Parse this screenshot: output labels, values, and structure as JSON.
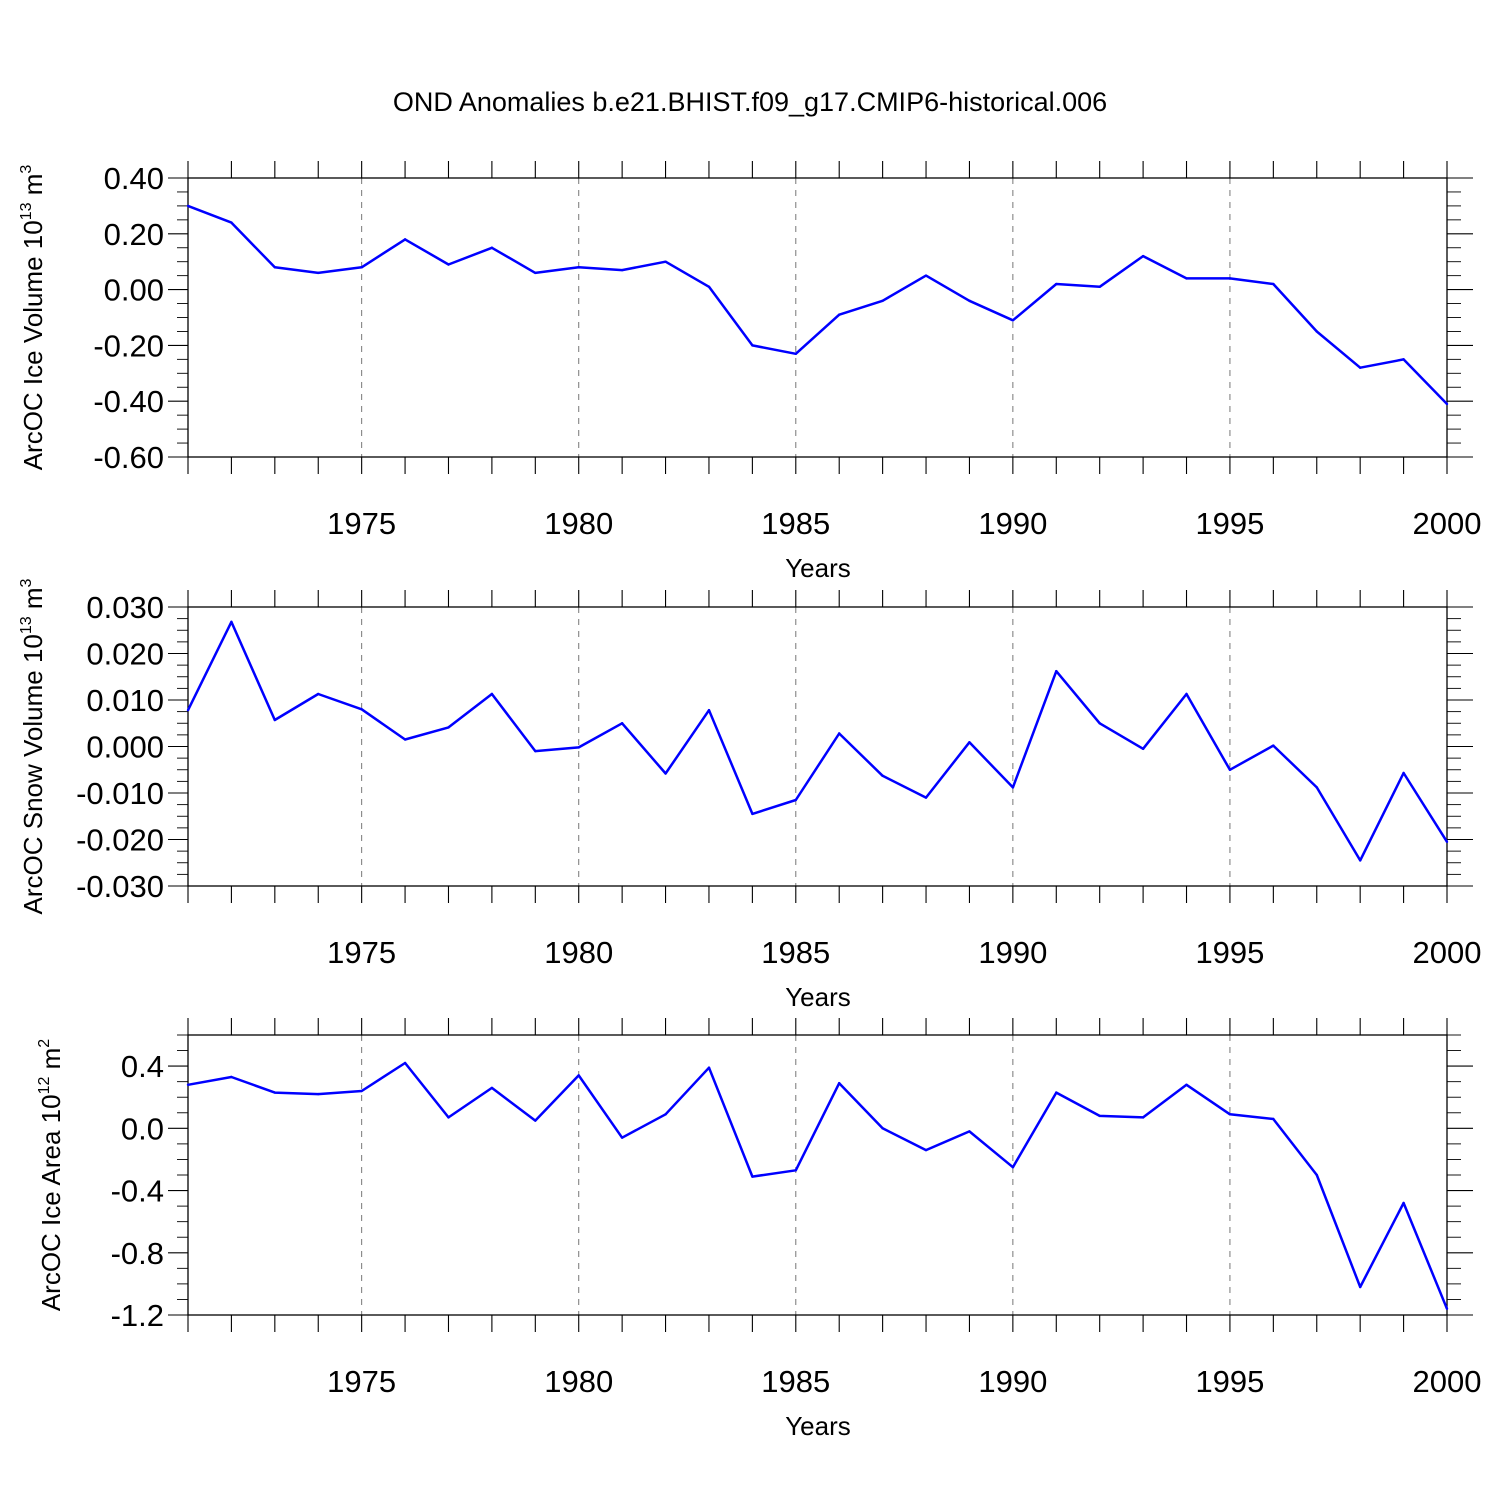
{
  "title": "OND Anomalies b.e21.BHIST.f09_g17.CMIP6-historical.006",
  "chart_data": [
    {
      "type": "line",
      "xlabel": "Years",
      "ylabel_main": "ArcOC Ice Volume 10",
      "ylabel_sup": "13",
      "ylabel_unit": "m",
      "ylabel_unit_sup": "3",
      "xlim": [
        1971,
        2000
      ],
      "ylim": [
        -0.6,
        0.4
      ],
      "yticks": [
        -0.6,
        -0.4,
        -0.2,
        0.0,
        0.2,
        0.4
      ],
      "ytick_labels": [
        "-0.60",
        "-0.40",
        "-0.20",
        "0.00",
        "0.20",
        "0.40"
      ],
      "xticks": [
        1975,
        1980,
        1985,
        1990,
        1995,
        2000
      ],
      "xtick_labels": [
        "1975",
        "1980",
        "1985",
        "1990",
        "1995",
        "2000"
      ],
      "grid": "vertical dashed at major x ticks",
      "color": "#0000ff",
      "x": [
        1971,
        1972,
        1973,
        1974,
        1975,
        1976,
        1977,
        1978,
        1979,
        1980,
        1981,
        1982,
        1983,
        1984,
        1985,
        1986,
        1987,
        1988,
        1989,
        1990,
        1991,
        1992,
        1993,
        1994,
        1995,
        1996,
        1997,
        1998,
        1999,
        2000
      ],
      "y": [
        0.3,
        0.24,
        0.08,
        0.06,
        0.08,
        0.18,
        0.09,
        0.15,
        0.06,
        0.08,
        0.07,
        0.1,
        0.01,
        -0.2,
        -0.23,
        -0.09,
        -0.04,
        0.05,
        -0.04,
        -0.11,
        0.02,
        0.01,
        0.12,
        0.04,
        0.04,
        0.02,
        -0.15,
        -0.28,
        -0.25,
        -0.41
      ]
    },
    {
      "type": "line",
      "xlabel": "Years",
      "ylabel_main": "ArcOC Snow Volume 10",
      "ylabel_sup": "13",
      "ylabel_unit": "m",
      "ylabel_unit_sup": "3",
      "xlim": [
        1971,
        2000
      ],
      "ylim": [
        -0.03,
        0.03
      ],
      "yticks": [
        -0.03,
        -0.02,
        -0.01,
        0.0,
        0.01,
        0.02,
        0.03
      ],
      "ytick_labels": [
        "-0.030",
        "-0.020",
        "-0.010",
        "0.000",
        "0.010",
        "0.020",
        "0.030"
      ],
      "xticks": [
        1975,
        1980,
        1985,
        1990,
        1995,
        2000
      ],
      "xtick_labels": [
        "1975",
        "1980",
        "1985",
        "1990",
        "1995",
        "2000"
      ],
      "grid": "vertical dashed at major x ticks",
      "color": "#0000ff",
      "x": [
        1971,
        1972,
        1973,
        1974,
        1975,
        1976,
        1977,
        1978,
        1979,
        1980,
        1981,
        1982,
        1983,
        1984,
        1985,
        1986,
        1987,
        1988,
        1989,
        1990,
        1991,
        1992,
        1993,
        1994,
        1995,
        1996,
        1997,
        1998,
        1999,
        2000
      ],
      "y": [
        0.0078,
        0.0268,
        0.0057,
        0.0113,
        0.008,
        0.0015,
        0.0041,
        0.0113,
        -0.001,
        -0.0002,
        0.005,
        -0.0058,
        0.0078,
        -0.0145,
        -0.0115,
        0.0028,
        -0.0063,
        -0.011,
        0.0009,
        -0.0088,
        0.0162,
        0.005,
        -0.0005,
        0.0113,
        -0.005,
        0.0002,
        -0.0088,
        -0.0245,
        -0.0057,
        -0.0205
      ]
    },
    {
      "type": "line",
      "xlabel": "Years",
      "ylabel_main": "ArcOC Ice Area 10",
      "ylabel_sup": "12",
      "ylabel_unit": "m",
      "ylabel_unit_sup": "2",
      "xlim": [
        1971,
        2000
      ],
      "ylim": [
        -1.2,
        0.6
      ],
      "yticks": [
        -1.2,
        -0.8,
        -0.4,
        0.0,
        0.4
      ],
      "ytick_labels": [
        "-1.2",
        "-0.8",
        "-0.4",
        "0.0",
        "0.4"
      ],
      "xticks": [
        1975,
        1980,
        1985,
        1990,
        1995,
        2000
      ],
      "xtick_labels": [
        "1975",
        "1980",
        "1985",
        "1990",
        "1995",
        "2000"
      ],
      "grid": "vertical dashed at major x ticks",
      "color": "#0000ff",
      "x": [
        1971,
        1972,
        1973,
        1974,
        1975,
        1976,
        1977,
        1978,
        1979,
        1980,
        1981,
        1982,
        1983,
        1984,
        1985,
        1986,
        1987,
        1988,
        1989,
        1990,
        1991,
        1992,
        1993,
        1994,
        1995,
        1996,
        1997,
        1998,
        1999,
        2000
      ],
      "y": [
        0.28,
        0.33,
        0.23,
        0.22,
        0.24,
        0.42,
        0.07,
        0.26,
        0.05,
        0.34,
        -0.06,
        0.09,
        0.39,
        -0.31,
        -0.27,
        0.29,
        0.0,
        -0.14,
        -0.02,
        -0.25,
        0.23,
        0.08,
        0.07,
        0.28,
        0.09,
        0.06,
        -0.3,
        -1.02,
        -0.48,
        -1.16
      ]
    }
  ]
}
